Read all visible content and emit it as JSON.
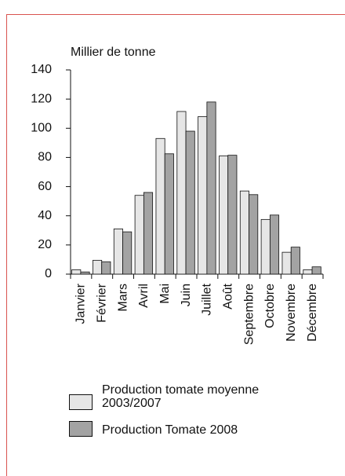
{
  "chart_data": {
    "type": "bar",
    "y_label": "Millier de tonne",
    "categories": [
      "Janvier",
      "Février",
      "Mars",
      "Avril",
      "Mai",
      "Juin",
      "Juillet",
      "Août",
      "Septembre",
      "Octobre",
      "Novembre",
      "Décembre"
    ],
    "series": [
      {
        "name": "Production tomate moyenne 2003/2007",
        "color": "#e6e6e6",
        "values": [
          3,
          9.5,
          31,
          54,
          93,
          111.5,
          108,
          81,
          57,
          37.5,
          15,
          3
        ]
      },
      {
        "name": "Production Tomate 2008",
        "color": "#a3a3a3",
        "values": [
          1.5,
          8.5,
          29,
          56,
          82.5,
          98,
          118,
          81.5,
          54.5,
          40.5,
          18.5,
          5
        ]
      }
    ],
    "ylim": [
      0,
      140
    ],
    "yticks": [
      0,
      20,
      40,
      60,
      80,
      100,
      120,
      140
    ]
  }
}
